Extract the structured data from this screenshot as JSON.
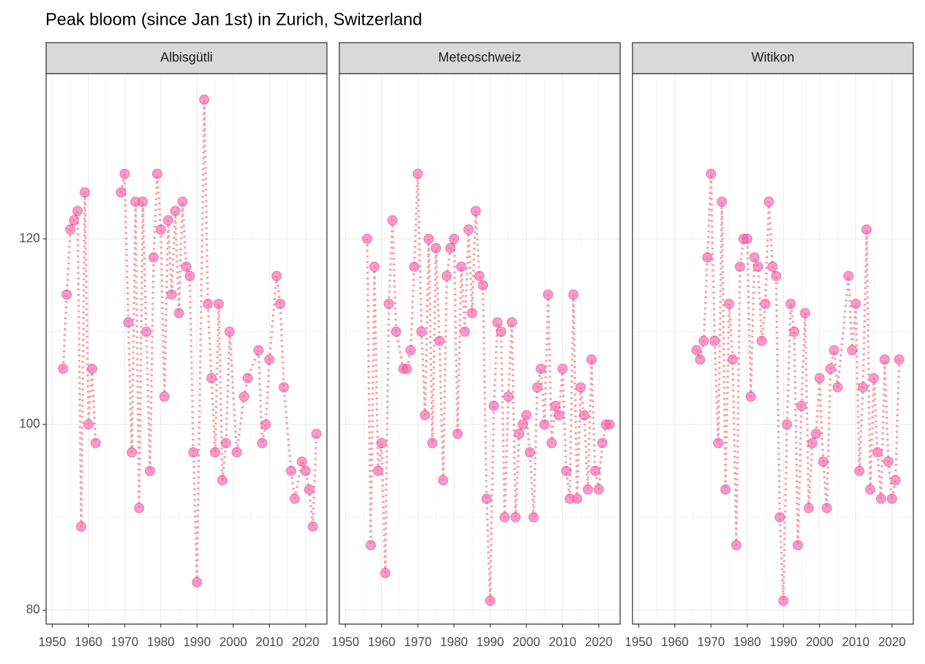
{
  "chart_data": {
    "type": "line",
    "title": "Peak bloom (since Jan 1st) in Zurich, Switzerland",
    "xlim": [
      1948.3,
      2025.9
    ],
    "xticks": [
      1950,
      1960,
      1970,
      1980,
      1990,
      2000,
      2010,
      2020
    ],
    "ylim": [
      78.5,
      137.8
    ],
    "yticks": [
      80,
      100,
      120
    ],
    "grid": true,
    "color": "#f564a9",
    "line_color": "#f8a0ab",
    "panels": [
      {
        "title": "Albisgütli",
        "x": [
          1953,
          1954,
          1955,
          1956,
          1957,
          1958,
          1959,
          1960,
          1961,
          1962,
          1965,
          1969,
          1970,
          1971,
          1972,
          1973,
          1974,
          1975,
          1976,
          1977,
          1978,
          1979,
          1980,
          1981,
          1982,
          1983,
          1984,
          1985,
          1986,
          1987,
          1988,
          1989,
          1990,
          1992,
          1993,
          1994,
          1995,
          1996,
          1997,
          1998,
          1999,
          2001,
          2003,
          2004,
          2007,
          2008,
          2009,
          2010,
          2012,
          2013,
          2014,
          2016,
          2017,
          2019,
          2020,
          2021,
          2022,
          2023
        ],
        "values": [
          106,
          114,
          121,
          122,
          123,
          89,
          125,
          100,
          106,
          98,
          null,
          125,
          127,
          111,
          97,
          124,
          91,
          124,
          110,
          95,
          118,
          127,
          121,
          103,
          122,
          114,
          123,
          112,
          124,
          117,
          116,
          97,
          83,
          135,
          113,
          105,
          97,
          113,
          94,
          98,
          110,
          97,
          103,
          105,
          108,
          98,
          100,
          107,
          116,
          113,
          104,
          95,
          92,
          96,
          95,
          93,
          89,
          99
        ]
      },
      {
        "title": "Meteoschweiz",
        "x": [
          1956,
          1957,
          1958,
          1959,
          1960,
          1961,
          1962,
          1963,
          1964,
          1966,
          1967,
          1968,
          1969,
          1970,
          1971,
          1972,
          1973,
          1974,
          1975,
          1976,
          1977,
          1978,
          1979,
          1980,
          1981,
          1982,
          1983,
          1984,
          1985,
          1986,
          1987,
          1988,
          1989,
          1990,
          1991,
          1992,
          1993,
          1994,
          1995,
          1996,
          1997,
          1998,
          1999,
          2000,
          2001,
          2002,
          2003,
          2004,
          2005,
          2006,
          2007,
          2008,
          2009,
          2010,
          2011,
          2012,
          2013,
          2014,
          2015,
          2016,
          2017,
          2018,
          2019,
          2020,
          2021,
          2022,
          2023
        ],
        "values": [
          120,
          87,
          117,
          95,
          98,
          84,
          113,
          122,
          110,
          106,
          106,
          108,
          117,
          127,
          110,
          101,
          120,
          98,
          119,
          109,
          94,
          116,
          119,
          120,
          99,
          117,
          110,
          121,
          112,
          123,
          116,
          115,
          92,
          81,
          102,
          111,
          110,
          90,
          103,
          111,
          90,
          99,
          100,
          101,
          97,
          90,
          104,
          106,
          100,
          114,
          98,
          102,
          101,
          106,
          95,
          92,
          114,
          92,
          104,
          101,
          93,
          107,
          95,
          93,
          98,
          100,
          100
        ]
      },
      {
        "title": "Witikon",
        "x": [
          1966,
          1967,
          1968,
          1969,
          1970,
          1971,
          1972,
          1973,
          1974,
          1975,
          1976,
          1977,
          1978,
          1979,
          1980,
          1981,
          1982,
          1983,
          1984,
          1985,
          1986,
          1987,
          1988,
          1989,
          1990,
          1991,
          1992,
          1993,
          1994,
          1995,
          1996,
          1997,
          1998,
          1999,
          2000,
          2001,
          2002,
          2003,
          2004,
          2005,
          2008,
          2009,
          2010,
          2011,
          2012,
          2013,
          2014,
          2015,
          2016,
          2017,
          2018,
          2019,
          2020,
          2021,
          2022
        ],
        "values": [
          108,
          107,
          109,
          118,
          127,
          109,
          98,
          124,
          93,
          113,
          107,
          87,
          117,
          120,
          120,
          103,
          118,
          117,
          109,
          113,
          124,
          117,
          116,
          90,
          81,
          100,
          113,
          110,
          87,
          102,
          112,
          91,
          98,
          99,
          105,
          96,
          91,
          106,
          108,
          104,
          116,
          108,
          113,
          95,
          104,
          121,
          93,
          105,
          97,
          92,
          107,
          96,
          92,
          94,
          107
        ]
      }
    ]
  }
}
